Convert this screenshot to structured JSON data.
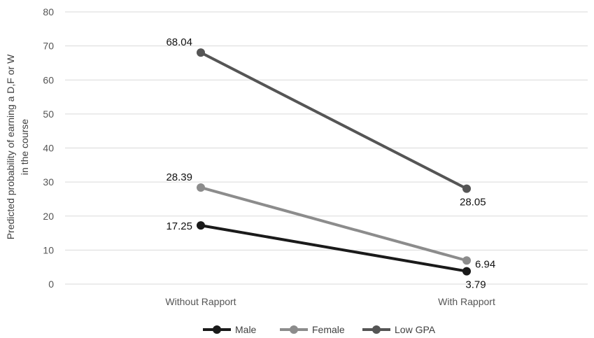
{
  "chart_data": {
    "type": "line",
    "categories": [
      "Without Rapport",
      "With Rapport"
    ],
    "ylabel_line1": "Predicted probability of earning a D,F or W",
    "ylabel_line2": "in the course",
    "ylim": [
      0,
      80
    ],
    "yticks": [
      "0",
      "10",
      "20",
      "30",
      "40",
      "50",
      "60",
      "70",
      "80"
    ],
    "grid": true,
    "legend_position": "bottom",
    "series": [
      {
        "name": "Male",
        "values": [
          17.25,
          3.79
        ],
        "labels": [
          "17.25",
          "3.79"
        ],
        "color": "#1a1a1a"
      },
      {
        "name": "Female",
        "values": [
          28.39,
          6.94
        ],
        "labels": [
          "28.39",
          "6.94"
        ],
        "color": "#8c8c8c"
      },
      {
        "name": "Low GPA",
        "values": [
          68.04,
          28.05
        ],
        "labels": [
          "68.04",
          "28.05"
        ],
        "color": "#555555"
      }
    ]
  }
}
